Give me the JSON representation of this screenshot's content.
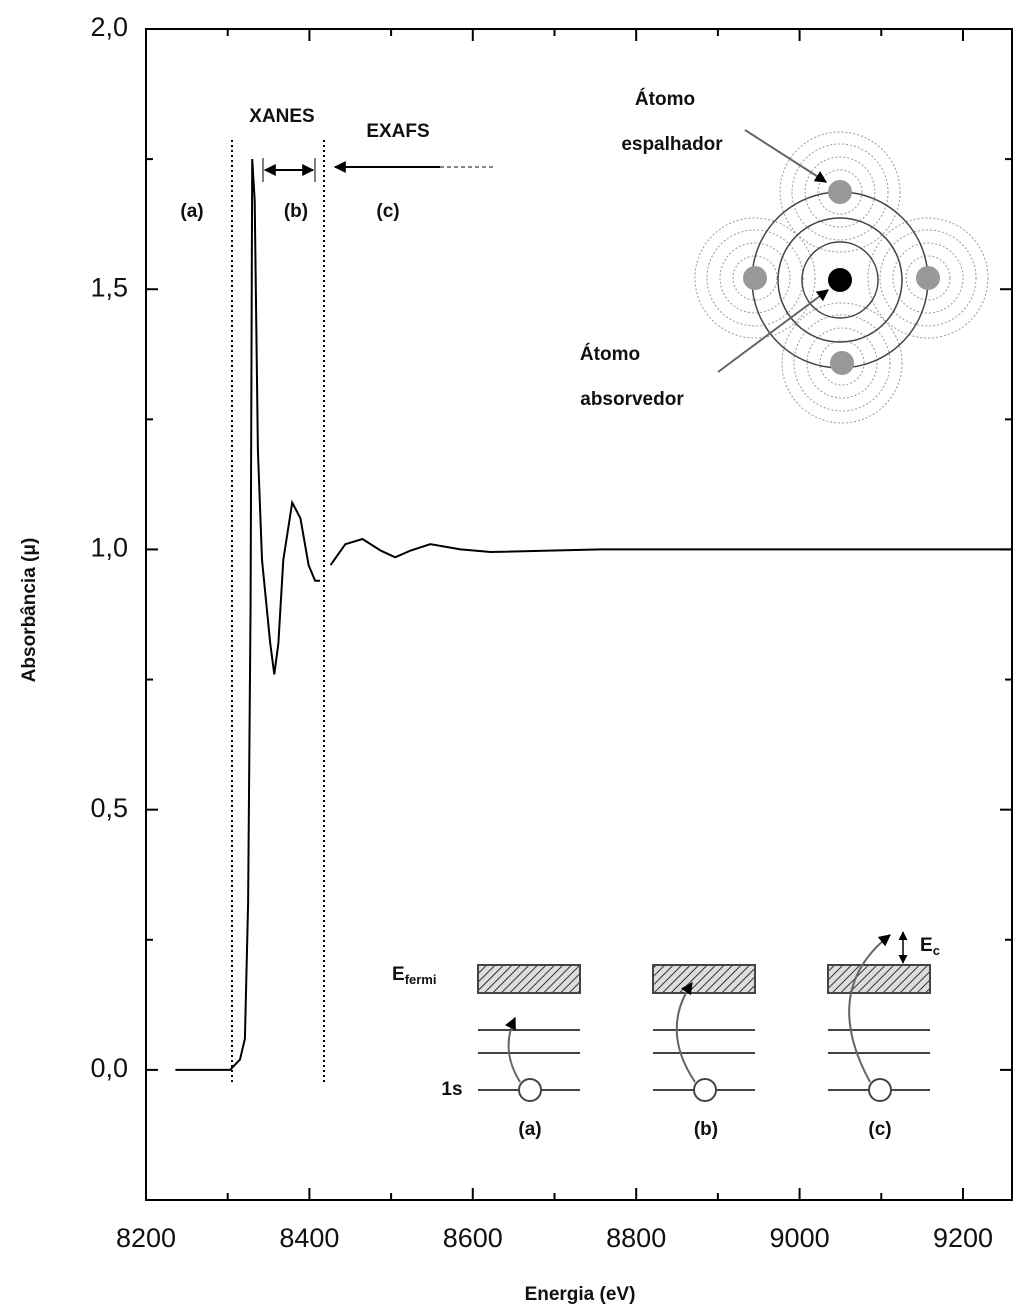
{
  "chart_data": {
    "type": "line",
    "x_label": "Energia (eV)",
    "y_label": "Absorbância (μ)",
    "xlim": [
      8200,
      9260
    ],
    "ylim": [
      -0.25,
      2.0
    ],
    "xticks": [
      8200,
      8400,
      8600,
      8800,
      9000,
      9200
    ],
    "xminorticks": [
      8300,
      8500,
      8700,
      8900,
      9100
    ],
    "yticks": [
      {
        "value": 0,
        "label": "0,0"
      },
      {
        "value": 0.5,
        "label": "0,5"
      },
      {
        "value": 1,
        "label": "1,0"
      },
      {
        "value": 1.5,
        "label": "1,5"
      },
      {
        "value": 2,
        "label": "2,0"
      }
    ],
    "yminorticks": [
      -0.25,
      0.25,
      0.75,
      1.25,
      1.75
    ],
    "series": [
      {
        "color": "#000000",
        "x": [
          8236,
          8303,
          8315,
          8321,
          8325,
          8328,
          8330,
          8333,
          8337,
          8342,
          8347,
          8352,
          8357,
          8362,
          8368,
          8379,
          8389,
          8399,
          8407,
          8413,
          8420,
          8426,
          8444,
          8465,
          8487,
          8505,
          8524,
          8548,
          8585,
          8622,
          8757,
          9002,
          9260
        ],
        "values": [
          0,
          0,
          0.02,
          0.06,
          0.32,
          0.9,
          1.75,
          1.67,
          1.19,
          0.98,
          0.9,
          0.82,
          0.76,
          0.82,
          0.98,
          1.09,
          1.06,
          0.97,
          0.94,
          0.94,
          null,
          0.97,
          1.01,
          1.02,
          0.998,
          0.985,
          0.998,
          1.01,
          1.0,
          0.995,
          1.0,
          1.0,
          1.0
        ]
      }
    ],
    "annotations": {
      "xanes": "XANES",
      "exafs": "EXAFS",
      "region_a": "(a)",
      "region_b": "(b)",
      "region_c": "(c)",
      "scatter_atom_1": "Átomo",
      "scatter_atom_2": "espalhador",
      "absorber_atom_1": "Átomo",
      "absorber_atom_2": "absorvedor",
      "e_fermi": "E",
      "e_fermi_sub": "fermi",
      "e_c": "E",
      "e_c_sub": "c",
      "level_1s": "1s",
      "panel_a": "(a)",
      "panel_b": "(b)",
      "panel_c": "(c)"
    }
  }
}
